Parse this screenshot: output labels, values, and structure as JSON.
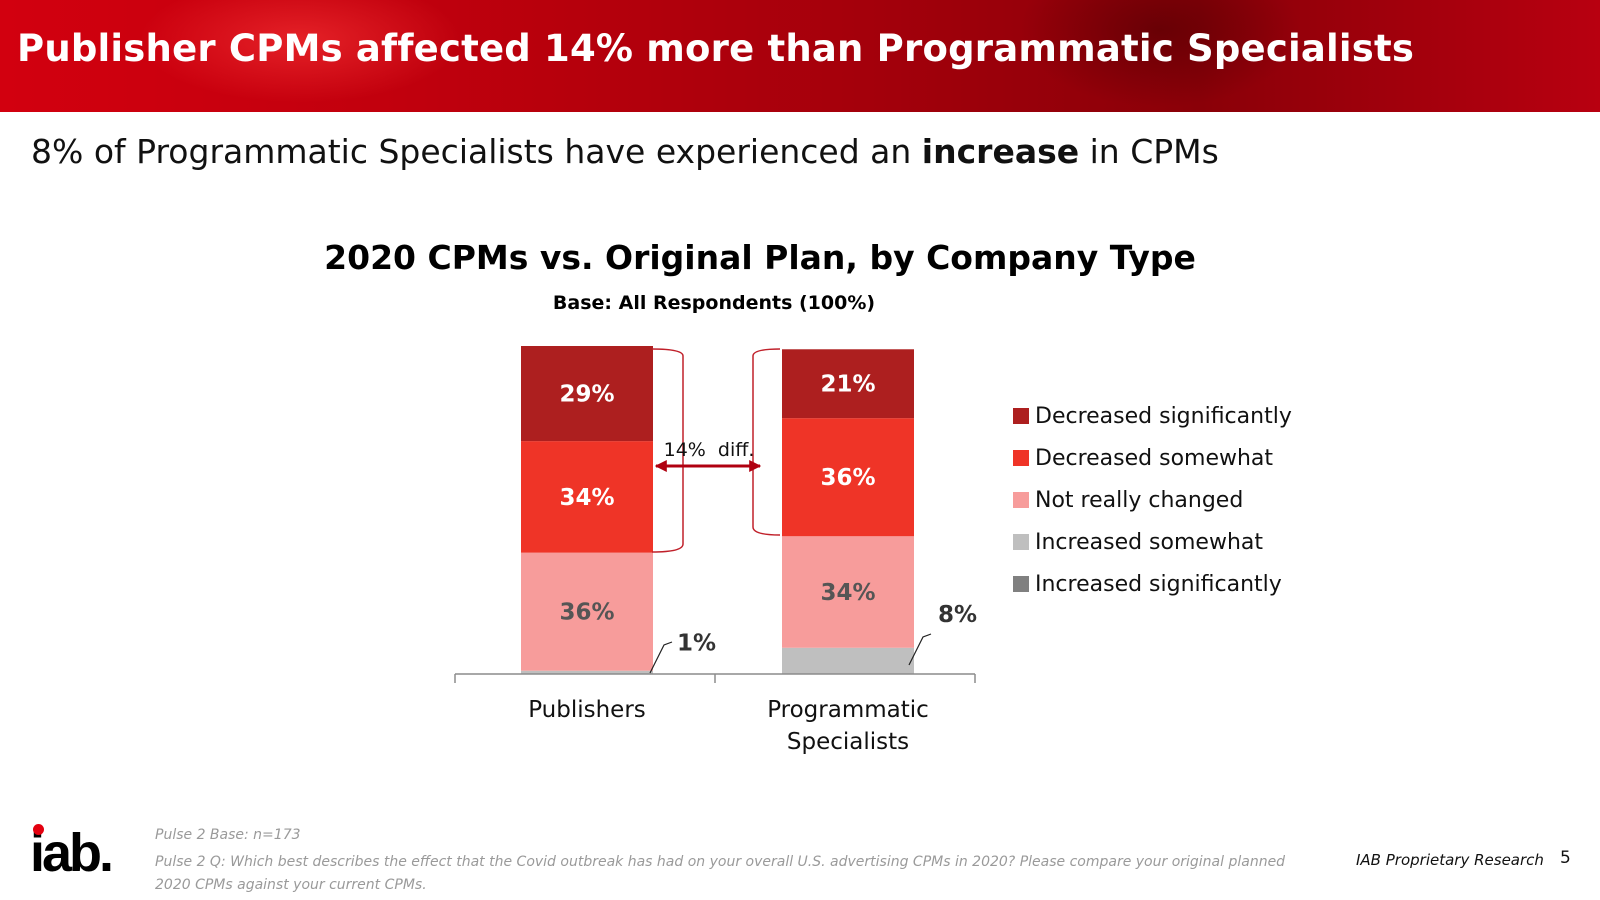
{
  "header": {
    "title": "Publisher CPMs affected 14% more than Programmatic Specialists",
    "subtitle_pre": "8% of Programmatic Specialists have experienced an ",
    "subtitle_bold": "increase",
    "subtitle_post": " in CPMs"
  },
  "colors": {
    "decreased_significantly": "#ad1f1f",
    "decreased_somewhat": "#ef3427",
    "not_really_changed": "#f79c9b",
    "increased_somewhat": "#bfbfbf",
    "increased_significantly": "#808080",
    "banner": "#c00010"
  },
  "chart_data": {
    "type": "bar",
    "stacked": true,
    "title": "2020 CPMs vs. Original Plan, by Company Type",
    "subtitle": "Base:  All Respondents (100%)",
    "categories": [
      "Publishers",
      "Programmatic Specialists"
    ],
    "category_lines": [
      [
        "Publishers"
      ],
      [
        "Programmatic",
        "Specialists"
      ]
    ],
    "series": [
      {
        "name": "Increased significantly",
        "color": "#808080",
        "values": [
          0,
          0
        ],
        "labels": [
          "",
          ""
        ]
      },
      {
        "name": "Increased somewhat",
        "color": "#bfbfbf",
        "values": [
          1,
          8
        ],
        "labels": [
          "1%",
          "8%"
        ]
      },
      {
        "name": "Not really changed",
        "color": "#f79c9b",
        "values": [
          36,
          34
        ],
        "labels": [
          "36%",
          "34%"
        ]
      },
      {
        "name": "Decreased somewhat",
        "color": "#ef3427",
        "values": [
          34,
          36
        ],
        "labels": [
          "34%",
          "36%"
        ]
      },
      {
        "name": "Decreased significantly",
        "color": "#ad1f1f",
        "values": [
          29,
          21
        ],
        "labels": [
          "29%",
          "21%"
        ]
      }
    ],
    "legend": [
      "Decreased significantly",
      "Decreased somewhat",
      "Not really changed",
      "Increased somewhat",
      "Increased significantly"
    ],
    "annotation": "14%  diff.",
    "ylim": [
      0,
      100
    ],
    "legend_position": "right"
  },
  "footer": {
    "base_note": "Pulse 2 Base: n=173",
    "question": "Pulse 2 Q: Which best describes the effect that the Covid outbreak has had on your overall U.S. advertising CPMs in 2020? Please compare your original planned 2020 CPMs against your current CPMs.",
    "proprietary": "IAB Proprietary Research",
    "page_number": "5",
    "logo_text": "iab"
  }
}
